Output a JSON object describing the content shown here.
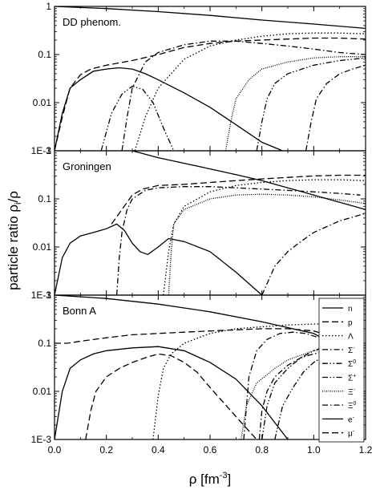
{
  "figure": {
    "ylabel_main": "particle ratio ρ",
    "ylabel_sub": "i",
    "ylabel_tail": "/ρ",
    "xlabel_main": "ρ [fm",
    "xlabel_sup": "-3",
    "xlabel_tail": "]"
  },
  "chart_data": [
    {
      "type": "line",
      "title": "DD phenom.",
      "xlim": [
        0,
        1.2
      ],
      "ylim": [
        0.001,
        1
      ],
      "yscale": "log",
      "series": [
        {
          "name": "n",
          "dash": "solid",
          "x": [
            0,
            0.2,
            0.4,
            0.6,
            0.8,
            1.0,
            1.2
          ],
          "y": [
            1.0,
            0.9,
            0.78,
            0.65,
            0.52,
            0.43,
            0.35
          ]
        },
        {
          "name": "p",
          "dash": "dash",
          "x": [
            0.0,
            0.03,
            0.06,
            0.1,
            0.14,
            0.2,
            0.3,
            0.4,
            0.5,
            0.6,
            0.7,
            0.8,
            0.9,
            1.0,
            1.1,
            1.2
          ],
          "y": [
            0.001,
            0.005,
            0.02,
            0.038,
            0.05,
            0.06,
            0.075,
            0.1,
            0.14,
            0.17,
            0.19,
            0.2,
            0.21,
            0.22,
            0.22,
            0.21
          ]
        },
        {
          "name": "Λ",
          "dash": "dot",
          "x": [
            0.31,
            0.35,
            0.4,
            0.5,
            0.6,
            0.7,
            0.8,
            0.9,
            1.0,
            1.1,
            1.2
          ],
          "y": [
            0.001,
            0.005,
            0.02,
            0.08,
            0.15,
            0.2,
            0.24,
            0.27,
            0.28,
            0.28,
            0.27
          ]
        },
        {
          "name": "Σ-",
          "dash": "dashdot",
          "x": [
            0.26,
            0.28,
            0.3,
            0.35,
            0.4,
            0.5,
            0.6,
            0.7,
            0.8,
            0.9,
            1.0,
            1.1,
            1.2
          ],
          "y": [
            0.001,
            0.005,
            0.02,
            0.07,
            0.11,
            0.16,
            0.19,
            0.19,
            0.17,
            0.15,
            0.13,
            0.11,
            0.1
          ]
        },
        {
          "name": "Σ0",
          "dash": "dashdotdot",
          "x": [
            0.18,
            0.22,
            0.26,
            0.3,
            0.34,
            0.38,
            0.42,
            0.46
          ],
          "y": [
            0.001,
            0.006,
            0.015,
            0.022,
            0.019,
            0.01,
            0.003,
            0.001
          ]
        },
        {
          "name": "Ξ-",
          "dash": "shortdot",
          "x": [
            0.66,
            0.68,
            0.7,
            0.75,
            0.8,
            0.9,
            1.0,
            1.1,
            1.2
          ],
          "y": [
            0.001,
            0.004,
            0.012,
            0.03,
            0.05,
            0.07,
            0.085,
            0.09,
            0.09
          ]
        },
        {
          "name": "Ξ0",
          "dash": "dashdot",
          "x": [
            0.97,
            0.99,
            1.01,
            1.05,
            1.1,
            1.15,
            1.2
          ],
          "y": [
            0.001,
            0.004,
            0.012,
            0.025,
            0.04,
            0.05,
            0.06
          ]
        },
        {
          "name": "Σ+",
          "dash": "dashdotdot",
          "x": [
            0.78,
            0.8,
            0.82,
            0.85,
            0.9,
            1.0,
            1.1,
            1.2
          ],
          "y": [
            0.001,
            0.004,
            0.012,
            0.025,
            0.04,
            0.06,
            0.075,
            0.085
          ]
        },
        {
          "name": "e-",
          "dash": "solid",
          "x": [
            0.0,
            0.03,
            0.06,
            0.1,
            0.15,
            0.2,
            0.25,
            0.3,
            0.35,
            0.4,
            0.5,
            0.6,
            0.7,
            0.8,
            0.88
          ],
          "y": [
            0.001,
            0.006,
            0.02,
            0.03,
            0.045,
            0.05,
            0.053,
            0.05,
            0.04,
            0.03,
            0.016,
            0.008,
            0.0035,
            0.0015,
            0.001
          ]
        }
      ]
    },
    {
      "type": "line",
      "title": "Groningen",
      "xlim": [
        0,
        1.2
      ],
      "ylim": [
        0.001,
        1
      ],
      "yscale": "log",
      "series": [
        {
          "name": "n",
          "dash": "solid",
          "x": [
            0.3,
            0.4,
            0.5,
            0.6,
            0.7,
            0.8,
            0.9,
            1.0,
            1.1,
            1.2
          ],
          "y": [
            1.0,
            0.72,
            0.55,
            0.42,
            0.32,
            0.24,
            0.17,
            0.12,
            0.085,
            0.06
          ]
        },
        {
          "name": "p",
          "dash": "dash",
          "x": [
            0.22,
            0.26,
            0.3,
            0.34,
            0.4,
            0.5,
            0.6,
            0.7,
            0.8,
            0.9,
            1.0,
            1.1,
            1.2
          ],
          "y": [
            0.03,
            0.06,
            0.12,
            0.16,
            0.19,
            0.2,
            0.22,
            0.24,
            0.26,
            0.28,
            0.3,
            0.31,
            0.31
          ]
        },
        {
          "name": "Λ",
          "dash": "dot",
          "x": [
            0.42,
            0.44,
            0.46,
            0.5,
            0.6,
            0.7,
            0.8,
            0.9,
            1.0,
            1.1,
            1.2
          ],
          "y": [
            0.001,
            0.008,
            0.03,
            0.07,
            0.14,
            0.19,
            0.22,
            0.24,
            0.25,
            0.25,
            0.24
          ]
        },
        {
          "name": "Σ-",
          "dash": "dashdot",
          "x": [
            0.24,
            0.25,
            0.26,
            0.28,
            0.3,
            0.35,
            0.4,
            0.5,
            0.6,
            0.7,
            0.8,
            0.9,
            1.0,
            1.1,
            1.18
          ],
          "y": [
            0.001,
            0.006,
            0.02,
            0.06,
            0.1,
            0.15,
            0.17,
            0.18,
            0.18,
            0.17,
            0.16,
            0.15,
            0.14,
            0.13,
            0.12
          ]
        },
        {
          "name": "Ξ-",
          "dash": "shortdot",
          "x": [
            0.44,
            0.45,
            0.46,
            0.5,
            0.6,
            0.7,
            0.8,
            0.9,
            1.0,
            1.1,
            1.2
          ],
          "y": [
            0.001,
            0.008,
            0.03,
            0.06,
            0.1,
            0.12,
            0.125,
            0.12,
            0.11,
            0.095,
            0.08
          ]
        },
        {
          "name": "Ξ0",
          "dash": "dashdot",
          "x": [
            0.8,
            0.85,
            0.9,
            0.95,
            1.0,
            1.1,
            1.2
          ],
          "y": [
            0.001,
            0.004,
            0.008,
            0.013,
            0.02,
            0.035,
            0.05
          ]
        },
        {
          "name": "e-",
          "dash": "solid",
          "x": [
            0.0,
            0.03,
            0.06,
            0.1,
            0.15,
            0.2,
            0.24,
            0.27,
            0.3,
            0.33,
            0.36,
            0.4,
            0.44,
            0.5,
            0.6,
            0.7,
            0.8
          ],
          "y": [
            0.001,
            0.006,
            0.012,
            0.017,
            0.02,
            0.024,
            0.03,
            0.022,
            0.012,
            0.008,
            0.007,
            0.01,
            0.015,
            0.013,
            0.008,
            0.003,
            0.001
          ]
        }
      ]
    },
    {
      "type": "line",
      "title": "Bonn A",
      "xlim": [
        0,
        1.2
      ],
      "ylim": [
        0.001,
        1
      ],
      "yscale": "log",
      "legend_position": "right",
      "legend": [
        "n",
        "p",
        "Λ",
        "Σ-",
        "Σ0",
        "Σ+",
        "Ξ-",
        "Ξ0",
        "e-",
        "μ-"
      ],
      "series": [
        {
          "name": "n",
          "dash": "solid",
          "x": [
            0,
            0.2,
            0.4,
            0.6,
            0.8,
            1.0,
            1.03
          ],
          "y": [
            1.0,
            0.85,
            0.65,
            0.45,
            0.28,
            0.16,
            0.13
          ]
        },
        {
          "name": "p",
          "dash": "dash",
          "x": [
            0.0,
            0.05,
            0.1,
            0.2,
            0.3,
            0.4,
            0.5,
            0.6,
            0.7,
            0.8,
            0.9,
            1.0,
            1.05
          ],
          "y": [
            0.1,
            0.1,
            0.11,
            0.13,
            0.15,
            0.16,
            0.17,
            0.18,
            0.19,
            0.2,
            0.2,
            0.18,
            0.15
          ]
        },
        {
          "name": "Λ",
          "dash": "dot",
          "x": [
            0.38,
            0.4,
            0.42,
            0.45,
            0.5,
            0.6,
            0.7,
            0.8,
            0.9,
            1.0,
            1.1,
            1.2
          ],
          "y": [
            0.001,
            0.008,
            0.03,
            0.06,
            0.1,
            0.16,
            0.2,
            0.22,
            0.24,
            0.25,
            0.26,
            0.27
          ]
        },
        {
          "name": "Σ-",
          "dash": "dashdot",
          "x": [
            0.73,
            0.75,
            0.78,
            0.82,
            0.87,
            0.92,
            0.97,
            1.02
          ],
          "y": [
            0.001,
            0.02,
            0.07,
            0.12,
            0.16,
            0.17,
            0.16,
            0.13
          ]
        },
        {
          "name": "Σ0",
          "dash": "dashdotdot",
          "x": [
            0.8,
            0.82,
            0.85,
            0.9,
            0.95,
            1.0,
            1.03
          ],
          "y": [
            0.001,
            0.005,
            0.015,
            0.03,
            0.05,
            0.07,
            0.08
          ]
        },
        {
          "name": "Σ+",
          "dash": "dashdotdot",
          "x": [
            0.85,
            0.88,
            0.92,
            0.96,
            1.0,
            1.03
          ],
          "y": [
            0.001,
            0.005,
            0.012,
            0.025,
            0.04,
            0.05
          ]
        },
        {
          "name": "Ξ-",
          "dash": "shortdot",
          "x": [
            0.72,
            0.74,
            0.78,
            0.85,
            0.9,
            1.0,
            1.05
          ],
          "y": [
            0.001,
            0.005,
            0.015,
            0.03,
            0.045,
            0.07,
            0.075
          ]
        },
        {
          "name": "Ξ0",
          "dash": "dashdot",
          "x": [
            0.79,
            0.8,
            0.82,
            0.85,
            0.9,
            0.95,
            1.0,
            1.03
          ],
          "y": [
            0.001,
            0.004,
            0.01,
            0.02,
            0.035,
            0.05,
            0.06,
            0.065
          ]
        },
        {
          "name": "e-",
          "dash": "solid",
          "x": [
            0.0,
            0.03,
            0.06,
            0.1,
            0.15,
            0.2,
            0.3,
            0.4,
            0.5,
            0.6,
            0.7,
            0.8,
            0.9
          ],
          "y": [
            0.001,
            0.01,
            0.03,
            0.045,
            0.06,
            0.07,
            0.08,
            0.085,
            0.07,
            0.04,
            0.018,
            0.005,
            0.001
          ]
        },
        {
          "name": "μ-",
          "dash": "dash",
          "x": [
            0.12,
            0.14,
            0.16,
            0.2,
            0.25,
            0.3,
            0.35,
            0.4,
            0.45,
            0.5,
            0.55,
            0.6,
            0.65,
            0.7,
            0.75,
            0.78
          ],
          "y": [
            0.001,
            0.004,
            0.01,
            0.02,
            0.03,
            0.04,
            0.05,
            0.06,
            0.055,
            0.04,
            0.025,
            0.012,
            0.006,
            0.003,
            0.0015,
            0.001
          ]
        }
      ]
    }
  ]
}
